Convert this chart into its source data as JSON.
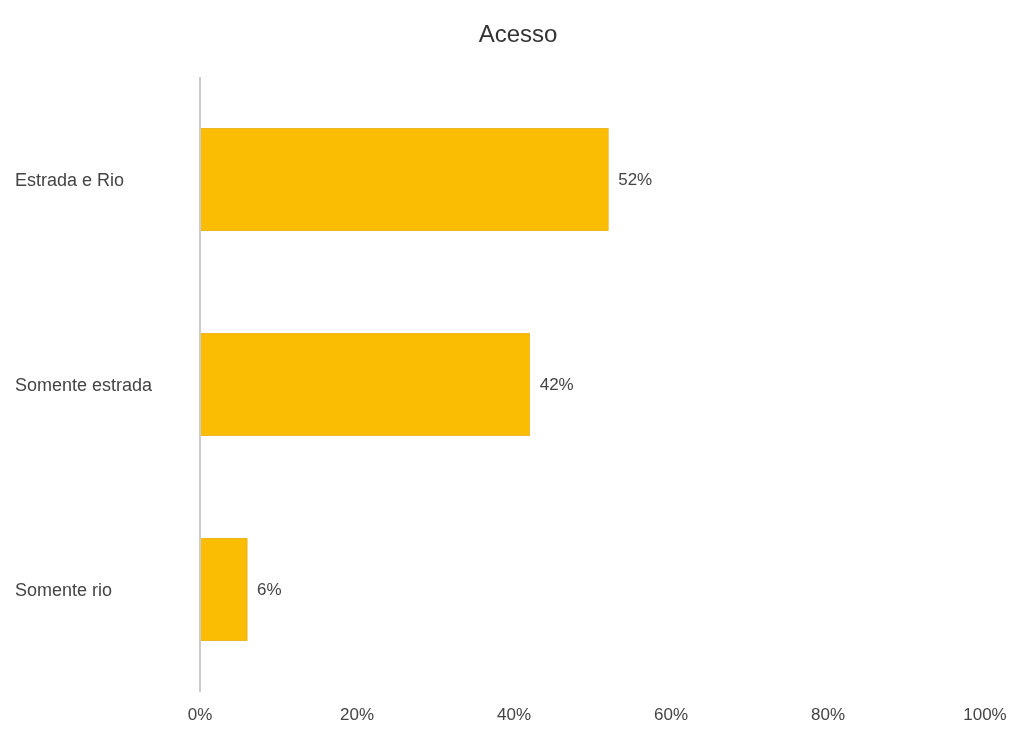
{
  "chart_data": {
    "type": "bar",
    "title": "Acesso",
    "orientation": "horizontal",
    "categories": [
      "Estrada e Rio",
      "Somente estrada",
      "Somente rio"
    ],
    "values": [
      52,
      42,
      6
    ],
    "color": "#fbbc04",
    "value_labels": [
      "52%",
      "42%",
      "6%"
    ],
    "xlim": [
      0,
      100
    ],
    "xticks": [
      {
        "value": 0,
        "label": "0%"
      },
      {
        "value": 20,
        "label": "20%"
      },
      {
        "value": 40,
        "label": "40%"
      },
      {
        "value": 60,
        "label": "60%"
      },
      {
        "value": 80,
        "label": "80%"
      },
      {
        "value": 100,
        "label": "100%"
      }
    ]
  }
}
